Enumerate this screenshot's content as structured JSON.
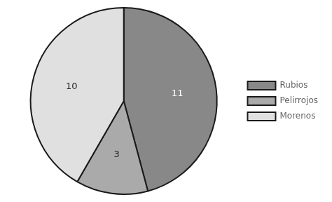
{
  "chart_data": {
    "type": "pie",
    "categories": [
      "Rubios",
      "Pelirrojos",
      "Morenos"
    ],
    "values": [
      11,
      3,
      10
    ],
    "colors": [
      "#888888",
      "#aaaaaa",
      "#e0e0e0"
    ],
    "data_labels": true,
    "legend": "right"
  }
}
